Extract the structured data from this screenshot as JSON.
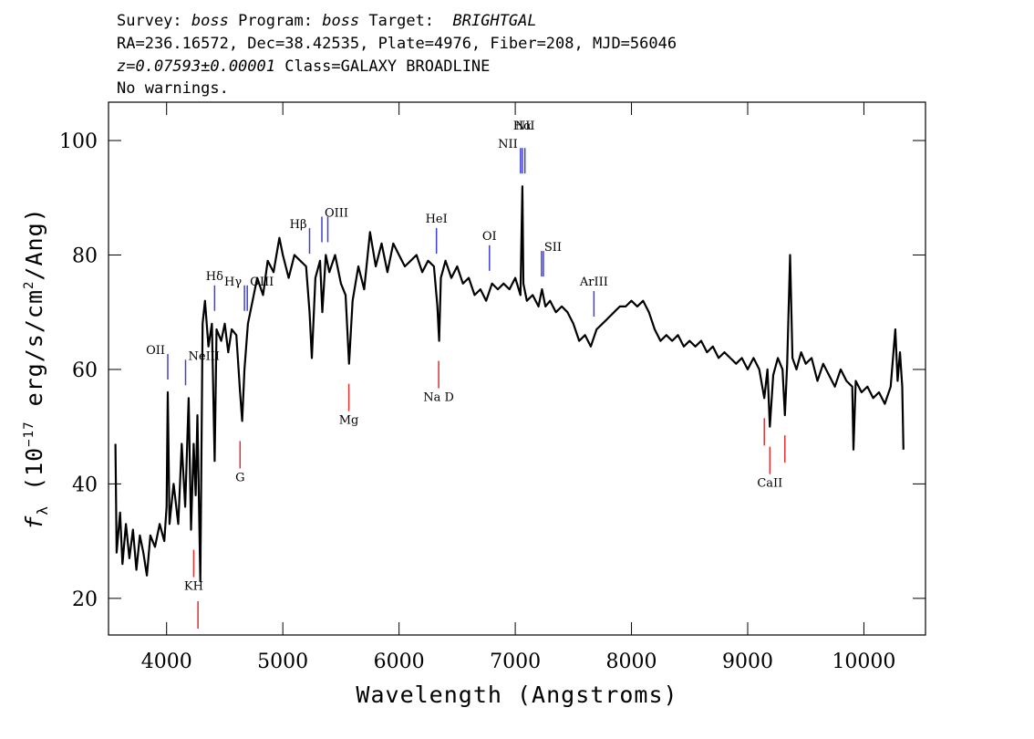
{
  "chart_data": {
    "type": "line",
    "header": [
      [
        "Survey: ",
        "boss",
        " Program: ",
        "boss",
        " Target:  ",
        "BRIGHTGAL"
      ],
      [
        "RA=236.16572, Dec=38.42535, Plate=4976, Fiber=208, MJD=56046"
      ],
      [
        "z=0.07593±0.00001",
        " Class=GALAXY BROADLINE"
      ],
      [
        "No warnings."
      ]
    ],
    "xlabel": "Wavelength (Angstroms)",
    "ylabel": [
      "f",
      "λ",
      " (10",
      "−17",
      " erg/s/cm",
      "2",
      "/Ang)"
    ],
    "xlim": [
      3500,
      10530
    ],
    "ylim": [
      13.6,
      106.7
    ],
    "xticks": [
      4000,
      5000,
      6000,
      7000,
      8000,
      9000,
      10000
    ],
    "yticks": [
      20,
      40,
      60,
      80,
      100
    ],
    "color": "#000000",
    "x": [
      3560,
      3570,
      3600,
      3620,
      3650,
      3680,
      3710,
      3740,
      3770,
      3800,
      3830,
      3860,
      3900,
      3940,
      3980,
      4000,
      4010,
      4025,
      4060,
      4100,
      4130,
      4160,
      4190,
      4210,
      4233,
      4250,
      4265,
      4290,
      4310,
      4330,
      4360,
      4390,
      4413,
      4430,
      4470,
      4500,
      4530,
      4560,
      4600,
      4632,
      4650,
      4670,
      4700,
      4740,
      4780,
      4830,
      4870,
      4920,
      4970,
      5000,
      5050,
      5100,
      5150,
      5200,
      5230,
      5250,
      5280,
      5320,
      5340,
      5370,
      5400,
      5450,
      5500,
      5540,
      5570,
      5600,
      5650,
      5700,
      5750,
      5800,
      5850,
      5900,
      5950,
      6000,
      6050,
      6100,
      6150,
      6200,
      6250,
      6300,
      6330,
      6345,
      6360,
      6400,
      6450,
      6500,
      6550,
      6600,
      6650,
      6700,
      6750,
      6800,
      6850,
      6900,
      6950,
      7000,
      7045,
      7061,
      7070,
      7100,
      7150,
      7200,
      7230,
      7260,
      7300,
      7350,
      7400,
      7450,
      7500,
      7550,
      7600,
      7650,
      7700,
      7750,
      7800,
      7850,
      7900,
      7950,
      8000,
      8050,
      8100,
      8150,
      8200,
      8250,
      8300,
      8350,
      8400,
      8450,
      8500,
      8550,
      8600,
      8650,
      8700,
      8750,
      8800,
      8850,
      8900,
      8950,
      9000,
      9050,
      9100,
      9143,
      9170,
      9191,
      9220,
      9260,
      9300,
      9320,
      9340,
      9365,
      9385,
      9420,
      9460,
      9500,
      9550,
      9600,
      9650,
      9700,
      9750,
      9800,
      9850,
      9900,
      9910,
      9930,
      9980,
      10030,
      10080,
      10130,
      10180,
      10230,
      10270,
      10290,
      10310,
      10330,
      10340
    ],
    "values": [
      47,
      28,
      35,
      26,
      33,
      27,
      32,
      25,
      31,
      28,
      24,
      31,
      29,
      33,
      30,
      36,
      56,
      33,
      40,
      33,
      47,
      36,
      55,
      32,
      47,
      38,
      52,
      23,
      68,
      72,
      64,
      68,
      44,
      67,
      65,
      68,
      63,
      67,
      66,
      56,
      51,
      60,
      68,
      72,
      76,
      73,
      79,
      77,
      83,
      80,
      76,
      80,
      79,
      78,
      70,
      62,
      76,
      79,
      70,
      80,
      77,
      80,
      75,
      73,
      61,
      72,
      78,
      74,
      84,
      78,
      82,
      77,
      82,
      80,
      78,
      79,
      80,
      77,
      79,
      78,
      71,
      65,
      76,
      79,
      76,
      78,
      75,
      76,
      73,
      74,
      72,
      75,
      74,
      75,
      74,
      76,
      73,
      92,
      75,
      72,
      73,
      71,
      74,
      71,
      72,
      70,
      71,
      70,
      68,
      65,
      66,
      64,
      67,
      68,
      69,
      70,
      71,
      71,
      72,
      71,
      72,
      70,
      67,
      65,
      66,
      65,
      66,
      64,
      65,
      64,
      65,
      63,
      64,
      62,
      63,
      62,
      61,
      62,
      60,
      62,
      60,
      55,
      60,
      50,
      59,
      62,
      60,
      52,
      61,
      80,
      62,
      60,
      63,
      61,
      62,
      58,
      61,
      59,
      57,
      60,
      58,
      57,
      46,
      58,
      56,
      57,
      55,
      56,
      54,
      57,
      67,
      58,
      63,
      57,
      46
    ],
    "emission_lines": {
      "color": "#4040d0",
      "wavelengths": [
        4010,
        4163,
        4413,
        4670,
        4694,
        5230,
        5336,
        5387,
        6322,
        6778,
        7045,
        7061,
        7083,
        7226,
        7242,
        7677
      ],
      "labels": [
        "OII",
        "NeIII",
        "Hδ",
        "Hγ",
        "OIII",
        "Hβ",
        "OIII",
        null,
        "HeI",
        "OI",
        "NII",
        "Hα",
        "NII",
        "SII",
        null,
        "ArIII"
      ]
    },
    "absorption_lines": {
      "color": "#e03030",
      "wavelengths": [
        4233,
        4270,
        4632,
        5568,
        6341,
        9143,
        9191,
        9320
      ],
      "labels": [
        "KH",
        null,
        "G",
        "Mg",
        "Na D",
        null,
        "CaII",
        null
      ]
    }
  }
}
